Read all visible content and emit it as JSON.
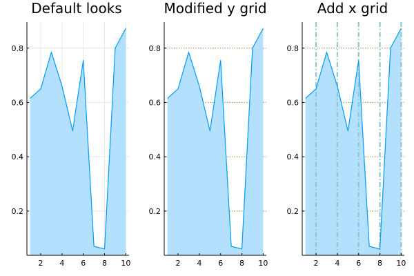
{
  "chart_data": [
    {
      "type": "area",
      "title": "Default looks",
      "x": [
        1,
        2,
        3,
        4,
        5,
        6,
        7,
        8,
        9,
        10
      ],
      "series": [
        {
          "values": [
            0.615,
            0.65,
            0.785,
            0.66,
            0.495,
            0.755,
            0.07,
            0.06,
            0.8,
            0.873
          ]
        }
      ],
      "xlim": [
        0.7,
        10.3
      ],
      "ylim": [
        0.037,
        0.896
      ],
      "xticks": [
        2,
        4,
        6,
        8,
        10
      ],
      "yticks": [
        0.2,
        0.4,
        0.6,
        0.8
      ],
      "grid": "light solid on both axes",
      "legend": "none"
    },
    {
      "type": "area",
      "title": "Modified y grid",
      "x": [
        1,
        2,
        3,
        4,
        5,
        6,
        7,
        8,
        9,
        10
      ],
      "series": [
        {
          "values": [
            0.615,
            0.65,
            0.785,
            0.66,
            0.495,
            0.755,
            0.07,
            0.06,
            0.8,
            0.873
          ]
        }
      ],
      "xlim": [
        0.7,
        10.3
      ],
      "ylim": [
        0.037,
        0.896
      ],
      "xticks": [
        2,
        4,
        6,
        8,
        10
      ],
      "yticks": [
        0.2,
        0.4,
        0.6,
        0.8
      ],
      "grid": "dotted olive-green horizontal lines on y only",
      "legend": "none"
    },
    {
      "type": "area",
      "title": "Add x grid",
      "x": [
        1,
        2,
        3,
        4,
        5,
        6,
        7,
        8,
        9,
        10
      ],
      "series": [
        {
          "values": [
            0.615,
            0.65,
            0.785,
            0.66,
            0.495,
            0.755,
            0.07,
            0.06,
            0.8,
            0.873
          ]
        }
      ],
      "xlim": [
        0.7,
        10.3
      ],
      "ylim": [
        0.037,
        0.896
      ],
      "xticks": [
        2,
        4,
        6,
        8,
        10
      ],
      "yticks": [
        0.2,
        0.4,
        0.6,
        0.8
      ],
      "grid": "dotted olive-green horizontal lines on y, dash-dot teal vertical lines on x",
      "legend": "none"
    }
  ],
  "colors": {
    "line": "#009af9",
    "fill": "#b3e0fd",
    "axis": "#000000",
    "grid_default": "#e6e6e6",
    "grid_y": "#9aa865",
    "grid_x": "#8fc8cc"
  }
}
